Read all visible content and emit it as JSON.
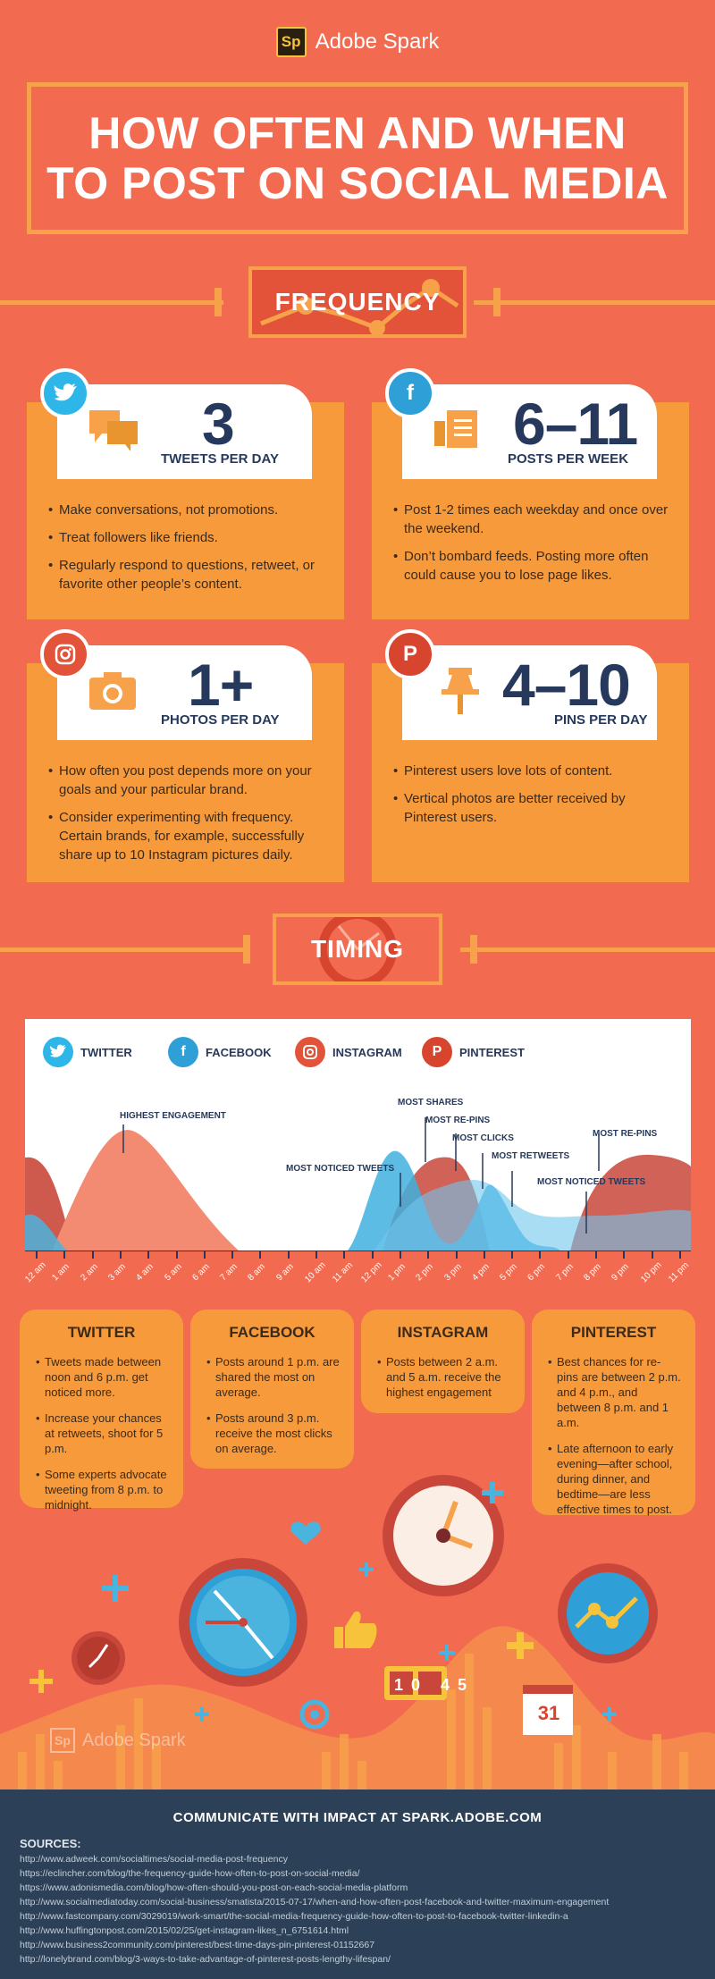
{
  "header": {
    "logo_mark": "Sp",
    "brand": "Adobe Spark",
    "title_line1": "HOW OFTEN AND WHEN",
    "title_line2": "TO POST ON SOCIAL MEDIA"
  },
  "frequency": {
    "banner": "FREQUENCY",
    "cards": [
      {
        "network": "twitter",
        "number": "3",
        "unit": "TWEETS PER DAY",
        "bullets": [
          "Make conversations, not promotions.",
          "Treat followers like friends.",
          "Regularly respond to questions, retweet, or favorite other people’s content."
        ]
      },
      {
        "network": "facebook",
        "number": "6–11",
        "unit": "POSTS PER WEEK",
        "bullets": [
          "Post 1-2 times each weekday and once over the weekend.",
          "Don’t bombard feeds. Posting more often could cause you to lose page likes."
        ]
      },
      {
        "network": "instagram",
        "number": "1+",
        "unit": "PHOTOS PER DAY",
        "bullets": [
          "How often you post depends more on your goals and your particular brand.",
          "Consider experimenting with frequency. Certain brands, for example, successfully share up to 10 Instagram pictures daily."
        ]
      },
      {
        "network": "pinterest",
        "number": "4–10",
        "unit": "PINS PER DAY",
        "bullets": [
          "Pinterest users love lots of content.",
          "Vertical photos are better received by Pinterest users."
        ]
      }
    ]
  },
  "timing": {
    "banner": "TIMING",
    "legend": [
      "TWITTER",
      "FACEBOOK",
      "INSTAGRAM",
      "PINTEREST"
    ],
    "annotations": [
      "HIGHEST ENGAGEMENT",
      "MOST NOTICED TWEETS",
      "MOST SHARES",
      "MOST RE-PINS",
      "MOST CLICKS",
      "MOST RETWEETS",
      "MOST NOTICED TWEETS",
      "MOST RE-PINS"
    ],
    "hours": [
      "12 am",
      "1 am",
      "2 am",
      "3 am",
      "4 am",
      "5 am",
      "6 am",
      "7 am",
      "8 am",
      "9 am",
      "10 am",
      "11 am",
      "12 pm",
      "1 pm",
      "2 pm",
      "3 pm",
      "4 pm",
      "5 pm",
      "6 pm",
      "7 pm",
      "8 pm",
      "9 pm",
      "10 pm",
      "11 pm"
    ],
    "cards": [
      {
        "title": "TWITTER",
        "bullets": [
          "Tweets made between noon and 6 p.m. get noticed more.",
          "Increase your chances at retweets, shoot for 5 p.m.",
          "Some experts advocate tweeting from 8 p.m. to midnight."
        ]
      },
      {
        "title": "FACEBOOK",
        "bullets": [
          "Posts around 1 p.m. are shared the most on average.",
          "Posts around 3 p.m. receive the most clicks on average."
        ]
      },
      {
        "title": "INSTAGRAM",
        "bullets": [
          "Posts between 2 a.m. and 5 a.m. receive the highest engagement"
        ]
      },
      {
        "title": "PINTEREST",
        "bullets": [
          "Best chances for re-pins are between 2 p.m. and 4 p.m., and between 8 p.m. and 1 a.m.",
          "Late afternoon to early evening—after school, during dinner, and bedtime—are less effective times to post."
        ]
      }
    ]
  },
  "illustration": {
    "clock_digits": "10 45",
    "calendar_day": "31",
    "watermark_mark": "Sp",
    "watermark": "Adobe Spark"
  },
  "footer": {
    "cta": "COMMUNICATE WITH IMPACT AT SPARK.ADOBE.COM",
    "sources_title": "SOURCES:",
    "sources": [
      "http://www.adweek.com/socialtimes/social-media-post-frequency",
      "https://eclincher.com/blog/the-frequency-guide-how-often-to-post-on-social-media/",
      "https://www.adonismedia.com/blog/how-often-should-you-post-on-each-social-media-platform",
      "http://www.socialmediatoday.com/social-business/smatista/2015-07-17/when-and-how-often-post-facebook-and-twitter-maximum-engagement",
      "http://www.fastcompany.com/3029019/work-smart/the-social-media-frequency-guide-how-often-to-post-to-facebook-twitter-linkedin-a",
      "http://www.huffingtonpost.com/2015/02/25/get-instagram-likes_n_6751614.html",
      "http://www.business2community.com/pinterest/best-time-days-pin-pinterest-01152667",
      "http://lonelybrand.com/blog/3-ways-to-take-advantage-of-pinterest-posts-lengthy-lifespan/"
    ]
  },
  "colors": {
    "background": "#f26b50",
    "card": "#f79a3b",
    "navy": "#26395c",
    "twitter": "#2fb6e8",
    "facebook": "#2f9fd8",
    "instagram": "#e2533a",
    "pinterest": "#d8452f"
  }
}
